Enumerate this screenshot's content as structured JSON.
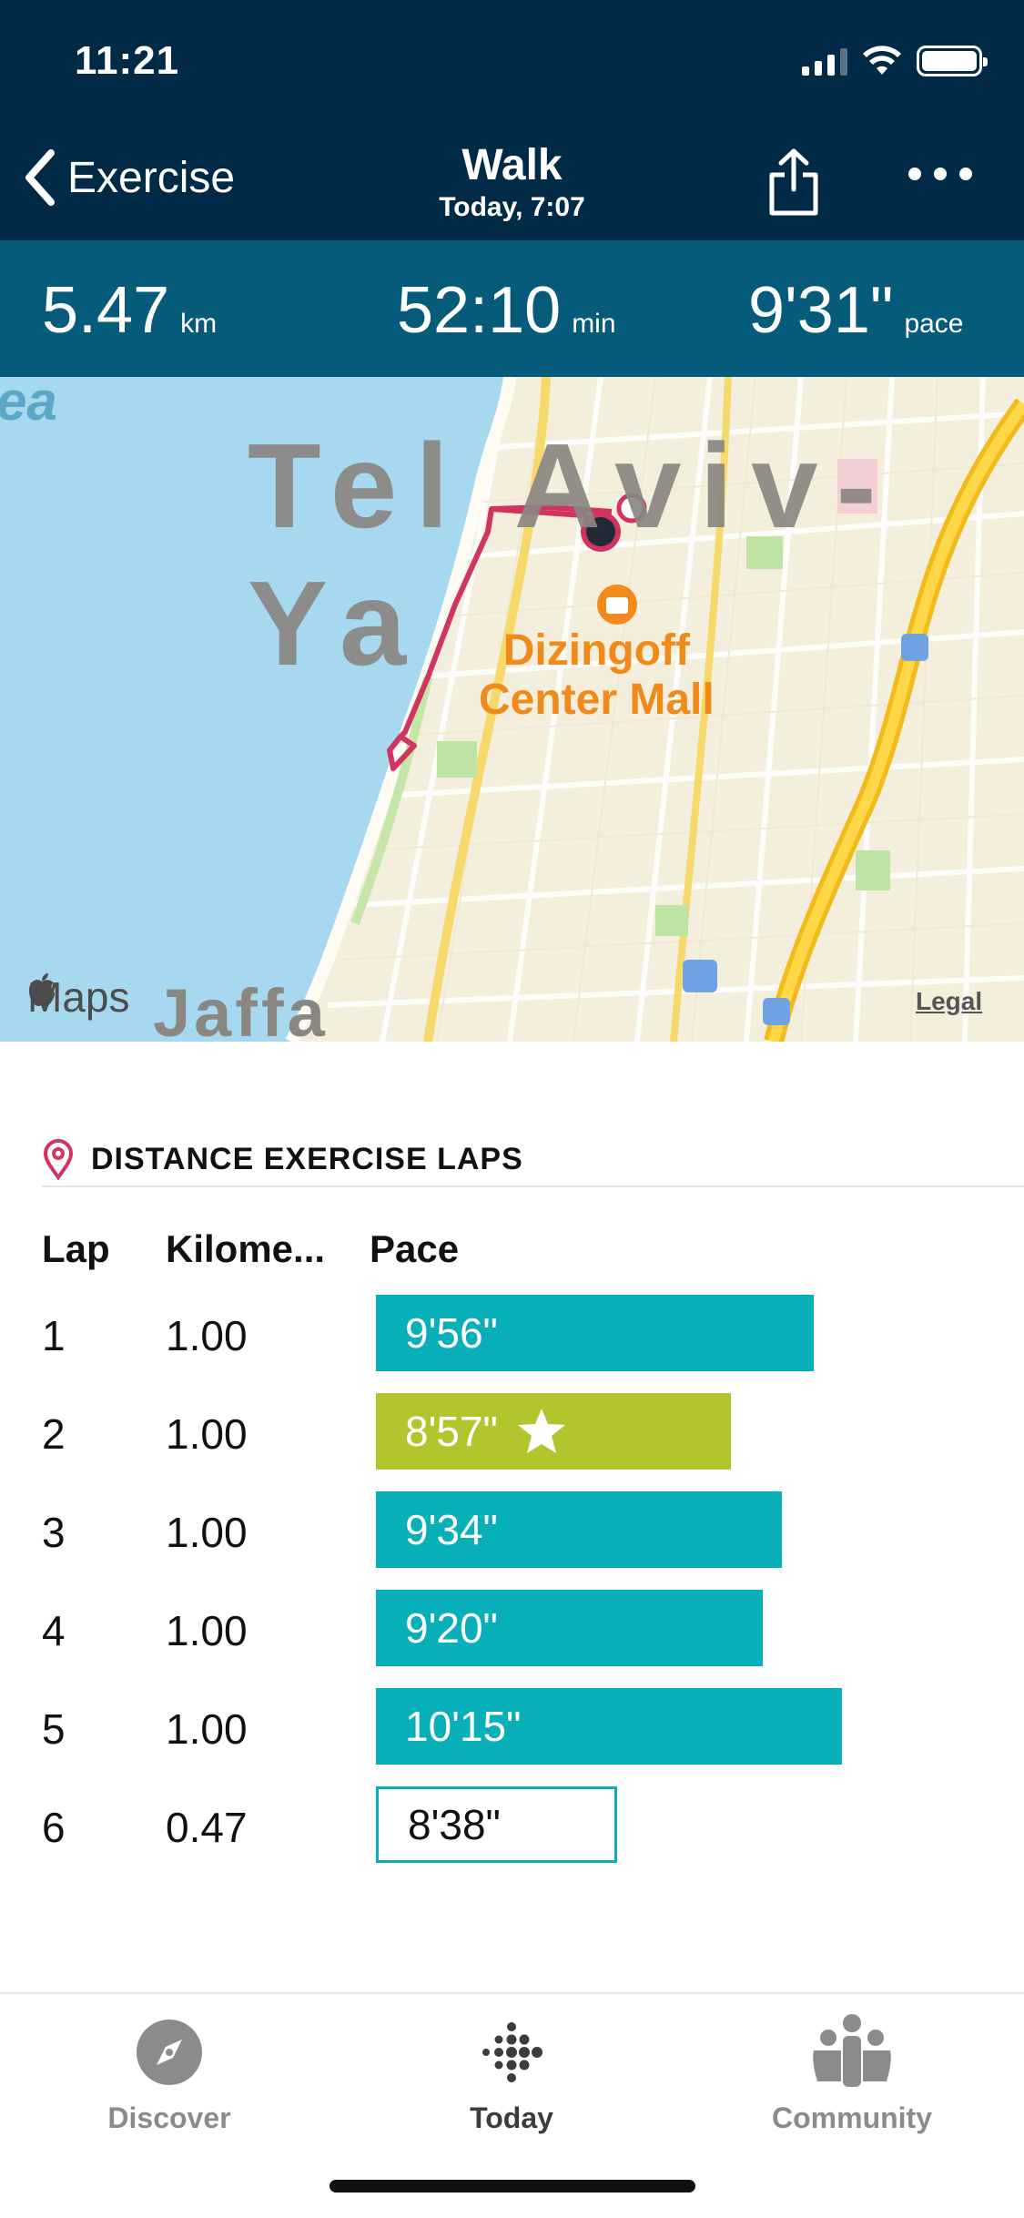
{
  "status_bar": {
    "time": "11:21"
  },
  "nav": {
    "back_label": "Exercise",
    "title": "Walk",
    "subtitle": "Today, 7:07"
  },
  "stats": [
    {
      "value": "5.47",
      "unit": "km"
    },
    {
      "value": "52:10",
      "unit": "min"
    },
    {
      "value": "9'31\"",
      "unit": "pace"
    }
  ],
  "map": {
    "city_label": "Tel Aviv-Ya",
    "sea_label": "ea",
    "poi_label_line1": "Dizingoff",
    "poi_label_line2": "Center Mall",
    "district_label": "Jaffa",
    "attribution": "Maps",
    "legal_link": "Legal"
  },
  "laps": {
    "section_title": "DISTANCE EXERCISE LAPS",
    "headers": {
      "lap": "Lap",
      "distance": "Kilome...",
      "pace": "Pace"
    },
    "rows": [
      {
        "lap": "1",
        "distance": "1.00",
        "pace": "9'56\"",
        "pace_seconds": 596,
        "best": false
      },
      {
        "lap": "2",
        "distance": "1.00",
        "pace": "8'57\"",
        "pace_seconds": 537,
        "best": true
      },
      {
        "lap": "3",
        "distance": "1.00",
        "pace": "9'34\"",
        "pace_seconds": 574,
        "best": false
      },
      {
        "lap": "4",
        "distance": "1.00",
        "pace": "9'20\"",
        "pace_seconds": 560,
        "best": false
      },
      {
        "lap": "5",
        "distance": "1.00",
        "pace": "10'15\"",
        "pace_seconds": 615,
        "best": false
      },
      {
        "lap": "6",
        "distance": "0.47",
        "pace": "8'38\"",
        "pace_seconds": 518,
        "best": false,
        "partial": true
      }
    ]
  },
  "colors": {
    "header_bg": "#002a45",
    "stats_bg": "#065b7b",
    "lap_bar": "#07afb8",
    "best_lap_bar": "#b3c42c",
    "route": "#d0345f"
  },
  "tabs": [
    {
      "label": "Discover",
      "icon": "compass-icon",
      "active": false
    },
    {
      "label": "Today",
      "icon": "fitbit-dots-icon",
      "active": true
    },
    {
      "label": "Community",
      "icon": "people-icon",
      "active": false
    }
  ]
}
